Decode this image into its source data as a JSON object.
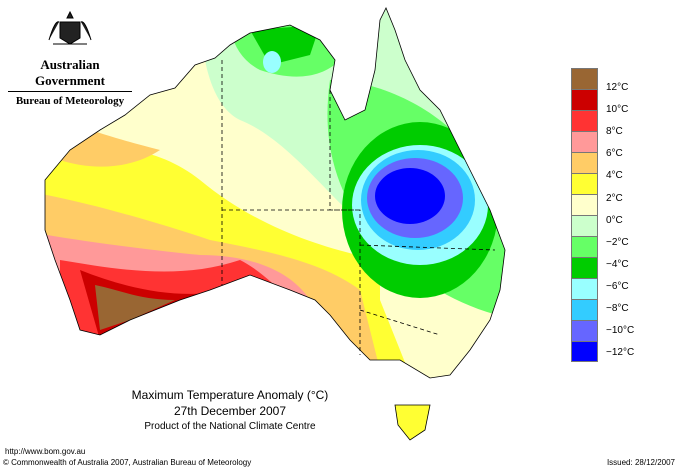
{
  "branding": {
    "government": "Australian Government",
    "bureau": "Bureau of Meteorology"
  },
  "map": {
    "title": "Maximum Temperature Anomaly (°C)",
    "date": "27th December 2007",
    "product": "Product of the National Climate Centre"
  },
  "legend": {
    "colors": [
      "#996633",
      "#cc0000",
      "#ff3333",
      "#ff9999",
      "#ffcc66",
      "#ffff33",
      "#ffffcc",
      "#ccffcc",
      "#66ff66",
      "#00cc00",
      "#99ffff",
      "#33ccff",
      "#6666ff",
      "#0000ff"
    ],
    "labels": [
      "12°C",
      "10°C",
      "8°C",
      "6°C",
      "4°C",
      "2°C",
      "0°C",
      "−2°C",
      "−4°C",
      "−6°C",
      "−8°C",
      "−10°C",
      "−12°C"
    ]
  },
  "footer": {
    "url": "http://www.bom.gov.au",
    "copyright": "© Commonwealth of Australia 2007, Australian Bureau of Meteorology",
    "issued": "Issued: 28/12/2007"
  }
}
